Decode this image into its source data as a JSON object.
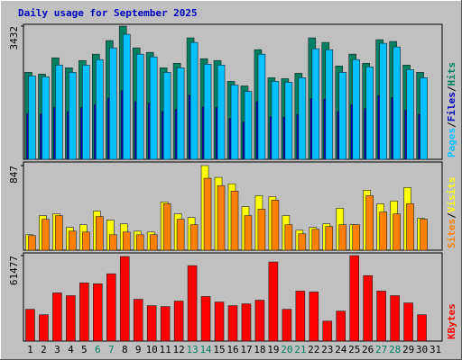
{
  "title": "Daily usage for September 2025",
  "chart_data": [
    {
      "type": "bar",
      "ylim": [
        0,
        3432
      ],
      "yticks": [
        3432
      ],
      "legend_separator": "/",
      "series": [
        {
          "name": "Hits",
          "color": "#008060",
          "values": [
            2242,
            2195,
            2615,
            2358,
            2545,
            2709,
            3059,
            3432,
            2872,
            2755,
            2358,
            2475,
            3129,
            2592,
            2545,
            2008,
            1891,
            2825,
            2101,
            2078,
            2218,
            3129,
            3012,
            2405,
            2709,
            2475,
            3082,
            3036,
            2428,
            2242,
            null
          ]
        },
        {
          "name": "Files",
          "color": "#0000c0",
          "values": [
            1181,
            1169,
            1335,
            1233,
            1335,
            1413,
            1580,
            1772,
            1490,
            1451,
            1233,
            1297,
            1657,
            1349,
            1335,
            1053,
            963,
            1490,
            1104,
            1092,
            1156,
            1567,
            1554,
            1233,
            1413,
            1310,
            1644,
            1592,
            1272,
            1156,
            null
          ]
        },
        {
          "name": "Pages",
          "color": "#00c0ff",
          "values": [
            2148,
            2125,
            2428,
            2242,
            2428,
            2569,
            2872,
            3222,
            2709,
            2639,
            2242,
            2358,
            3012,
            2452,
            2428,
            1915,
            1751,
            2709,
            2008,
            1985,
            2101,
            2849,
            2825,
            2242,
            2569,
            2382,
            2989,
            2895,
            2312,
            2101,
            null
          ]
        }
      ]
    },
    {
      "type": "bar",
      "ylim": [
        0,
        847
      ],
      "yticks": [
        847
      ],
      "legend_separator": "/",
      "series": [
        {
          "name": "Visits",
          "color": "#ffff00",
          "values": [
            155,
            346,
            364,
            228,
            255,
            392,
            301,
            264,
            191,
            182,
            483,
            364,
            328,
            847,
            729,
            665,
            437,
            546,
            537,
            346,
            200,
            228,
            264,
            419,
            255,
            601,
            464,
            492,
            628,
            319,
            null
          ]
        },
        {
          "name": "Sites",
          "color": "#ff8000",
          "values": [
            146,
            310,
            346,
            191,
            182,
            337,
            155,
            182,
            155,
            155,
            465,
            310,
            255,
            720,
            647,
            592,
            346,
            410,
            501,
            255,
            164,
            209,
            237,
            255,
            255,
            546,
            383,
            364,
            465,
            310,
            null
          ]
        }
      ]
    },
    {
      "type": "bar",
      "ylim": [
        0,
        61477
      ],
      "yticks": [
        61477
      ],
      "categories": [
        "1",
        "2",
        "3",
        "4",
        "5",
        "6",
        "7",
        "8",
        "9",
        "10",
        "11",
        "12",
        "13",
        "14",
        "15",
        "16",
        "17",
        "18",
        "19",
        "20",
        "21",
        "22",
        "23",
        "24",
        "25",
        "26",
        "27",
        "28",
        "29",
        "30",
        "31"
      ],
      "category_colors": [
        "#000000",
        "#000000",
        "#000000",
        "#000000",
        "#000000",
        "#008060",
        "#008060",
        "#000000",
        "#000000",
        "#000000",
        "#000000",
        "#000000",
        "#008060",
        "#008060",
        "#000000",
        "#000000",
        "#000000",
        "#000000",
        "#000000",
        "#008060",
        "#008060",
        "#000000",
        "#000000",
        "#000000",
        "#000000",
        "#000000",
        "#008060",
        "#008060",
        "#000000",
        "#000000",
        "#000000"
      ],
      "series": [
        {
          "name": "KBytes",
          "color": "#ff0000",
          "values": [
            22890,
            18966,
            34662,
            32700,
            41856,
            41202,
            48396,
            60822,
            30084,
            25506,
            24852,
            28776,
            54282,
            32046,
            28122,
            25506,
            26814,
            29430,
            56898,
            22890,
            35970,
            35316,
            14388,
            21582,
            61477,
            47088,
            35970,
            32700,
            27468,
            18966,
            null
          ]
        }
      ]
    }
  ]
}
